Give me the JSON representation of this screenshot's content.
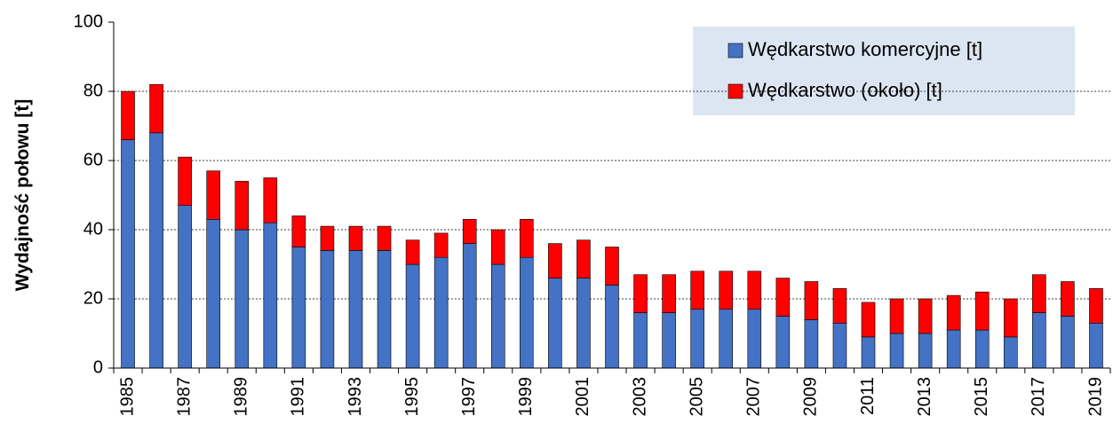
{
  "chart_data": {
    "type": "stacked_bar",
    "y_label": "Wydajność połowu [t]",
    "categories": [
      "1985",
      null,
      "1987",
      null,
      "1989",
      null,
      "1991",
      null,
      "1993",
      null,
      "1995",
      null,
      "1997",
      null,
      "1999",
      null,
      "2001",
      null,
      "2003",
      null,
      "2005",
      null,
      "2007",
      null,
      "2009",
      null,
      "2011",
      null,
      "2013",
      null,
      "2015",
      null,
      "2017",
      null,
      "2019"
    ],
    "series": [
      {
        "name": "Wędkarstwo komercyjne [t]",
        "color": "#4472c4",
        "values": [
          66,
          68,
          47,
          43,
          40,
          42,
          35,
          34,
          34,
          34,
          30,
          32,
          36,
          30,
          32,
          26,
          26,
          24,
          16,
          16,
          17,
          17,
          17,
          15,
          14,
          13,
          9,
          10,
          10,
          11,
          11,
          9,
          16,
          15,
          13
        ]
      },
      {
        "name": "Wędkarstwo (około) [t]",
        "color": "#ff0000",
        "values": [
          14,
          14,
          14,
          14,
          14,
          13,
          9,
          7,
          7,
          7,
          7,
          7,
          7,
          10,
          11,
          10,
          11,
          11,
          11,
          11,
          11,
          11,
          11,
          11,
          11,
          10,
          10,
          10,
          10,
          10,
          11,
          11,
          11,
          10,
          10
        ]
      }
    ],
    "ylim": [
      0,
      100
    ],
    "yticks": [
      0,
      20,
      40,
      60,
      80,
      100
    ],
    "grid": true,
    "legend": "upper right"
  }
}
